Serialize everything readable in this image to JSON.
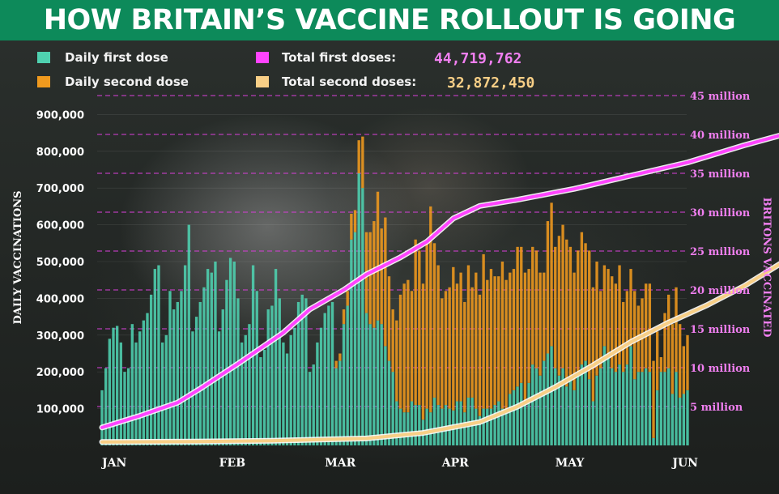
{
  "title": "HOW BRITAIN’S VACCINE ROLLOUT IS GOING",
  "legend": {
    "daily_first": "Daily first dose",
    "daily_second": "Daily second dose",
    "total_first": "Total first doses:",
    "total_first_value": "44,719,762",
    "total_second": "Total second doses:",
    "total_second_value": "32,872,450"
  },
  "colors": {
    "daily_first": "#4fd1b0",
    "daily_second": "#f09a1e",
    "total_first": "#ff44ff",
    "total_second": "#f8cf86",
    "title_bar": "#0d8a5a",
    "gridline": "#d040d0"
  },
  "chart_data": {
    "type": "bar",
    "ylabel": "DAILY VACCINATIONS",
    "ylabel_right": "BRITONS VACCINATED",
    "ylim": [
      0,
      1000000
    ],
    "ylim_right": [
      0,
      50
    ],
    "yticks": [
      "100,000",
      "200,000",
      "300,000",
      "400,000",
      "500,000",
      "600,000",
      "700,000",
      "800,000",
      "900,000"
    ],
    "yticks_right": [
      "5 million",
      "10 million",
      "15 million",
      "20 million",
      "25 million",
      "30 million",
      "35 million",
      "40 million",
      "45 million"
    ],
    "xticks": [
      "JAN",
      "FEB",
      "MAR",
      "APR",
      "MAY",
      "JUN"
    ],
    "daily_first": [
      150000,
      210000,
      290000,
      320000,
      325000,
      280000,
      200000,
      210000,
      330000,
      280000,
      310000,
      340000,
      360000,
      410000,
      480000,
      490000,
      280000,
      300000,
      420000,
      370000,
      390000,
      420000,
      490000,
      600000,
      310000,
      350000,
      390000,
      430000,
      480000,
      470000,
      500000,
      310000,
      370000,
      450000,
      510000,
      500000,
      400000,
      280000,
      300000,
      330000,
      490000,
      420000,
      240000,
      260000,
      370000,
      380000,
      480000,
      400000,
      280000,
      250000,
      300000,
      320000,
      390000,
      410000,
      400000,
      200000,
      220000,
      280000,
      320000,
      360000,
      380000,
      390000,
      210000,
      230000,
      330000,
      380000,
      560000,
      580000,
      740000,
      700000,
      360000,
      330000,
      320000,
      340000,
      330000,
      270000,
      230000,
      200000,
      120000,
      100000,
      90000,
      90000,
      120000,
      110000,
      110000,
      70000,
      100000,
      90000,
      130000,
      110000,
      100000,
      110000,
      100000,
      95000,
      120000,
      120000,
      90000,
      130000,
      130000,
      100000,
      80000,
      100000,
      100000,
      100000,
      110000,
      120000,
      100000,
      90000,
      140000,
      150000,
      160000,
      170000,
      110000,
      170000,
      220000,
      210000,
      190000,
      230000,
      250000,
      270000,
      210000,
      190000,
      210000,
      160000,
      190000,
      150000,
      190000,
      220000,
      230000,
      180000,
      120000,
      190000,
      210000,
      270000,
      250000,
      210000,
      200000,
      220000,
      200000,
      220000,
      270000,
      180000,
      200000,
      200000,
      210000,
      200000,
      20000,
      150000,
      200000,
      200000,
      210000,
      140000,
      200000,
      130000,
      140000,
      150000
    ],
    "daily_second": [
      0,
      0,
      0,
      0,
      0,
      0,
      0,
      0,
      0,
      0,
      0,
      0,
      0,
      0,
      0,
      0,
      0,
      0,
      0,
      0,
      0,
      0,
      0,
      0,
      0,
      0,
      0,
      0,
      0,
      0,
      0,
      0,
      0,
      0,
      0,
      0,
      0,
      0,
      0,
      0,
      0,
      0,
      0,
      0,
      0,
      0,
      0,
      0,
      0,
      0,
      0,
      0,
      0,
      0,
      0,
      0,
      0,
      0,
      0,
      0,
      0,
      0,
      20000,
      20000,
      40000,
      40000,
      70000,
      60000,
      90000,
      140000,
      220000,
      250000,
      290000,
      350000,
      260000,
      350000,
      230000,
      170000,
      220000,
      310000,
      350000,
      360000,
      300000,
      450000,
      420000,
      370000,
      450000,
      560000,
      420000,
      380000,
      300000,
      310000,
      330000,
      390000,
      320000,
      350000,
      300000,
      360000,
      300000,
      370000,
      330000,
      420000,
      350000,
      380000,
      350000,
      340000,
      400000,
      360000,
      330000,
      330000,
      380000,
      370000,
      360000,
      310000,
      320000,
      320000,
      280000,
      240000,
      360000,
      390000,
      330000,
      380000,
      390000,
      400000,
      350000,
      320000,
      340000,
      360000,
      320000,
      350000,
      310000,
      310000,
      210000,
      220000,
      230000,
      250000,
      240000,
      270000,
      190000,
      200000,
      210000,
      240000,
      180000,
      200000,
      230000,
      240000,
      210000,
      160000,
      40000,
      160000,
      200000,
      190000,
      230000,
      200000,
      130000,
      150000,
      140000,
      130000
    ],
    "total_first": [
      [
        0,
        2.3
      ],
      [
        10,
        3.8
      ],
      [
        20,
        5.5
      ],
      [
        26,
        7.3
      ],
      [
        36,
        10.5
      ],
      [
        42,
        12.5
      ],
      [
        48,
        14.5
      ],
      [
        55,
        17.5
      ],
      [
        64,
        20.0
      ],
      [
        70,
        22.0
      ],
      [
        79,
        24.2
      ],
      [
        86,
        26.2
      ],
      [
        93,
        29.2
      ],
      [
        100,
        30.8
      ],
      [
        110,
        31.6
      ],
      [
        125,
        33.0
      ],
      [
        140,
        34.7
      ],
      [
        155,
        36.4
      ],
      [
        170,
        38.6
      ],
      [
        185,
        40.6
      ],
      [
        200,
        42.5
      ],
      [
        214,
        44.7
      ]
    ],
    "total_second": [
      [
        0,
        0.45
      ],
      [
        25,
        0.5
      ],
      [
        45,
        0.6
      ],
      [
        70,
        0.9
      ],
      [
        85,
        1.6
      ],
      [
        100,
        3.0
      ],
      [
        110,
        5.0
      ],
      [
        120,
        7.5
      ],
      [
        130,
        10.3
      ],
      [
        140,
        13.3
      ],
      [
        150,
        15.8
      ],
      [
        160,
        18.0
      ],
      [
        170,
        20.5
      ],
      [
        180,
        23.5
      ],
      [
        190,
        26.0
      ],
      [
        200,
        28.5
      ],
      [
        214,
        32.9
      ]
    ]
  }
}
